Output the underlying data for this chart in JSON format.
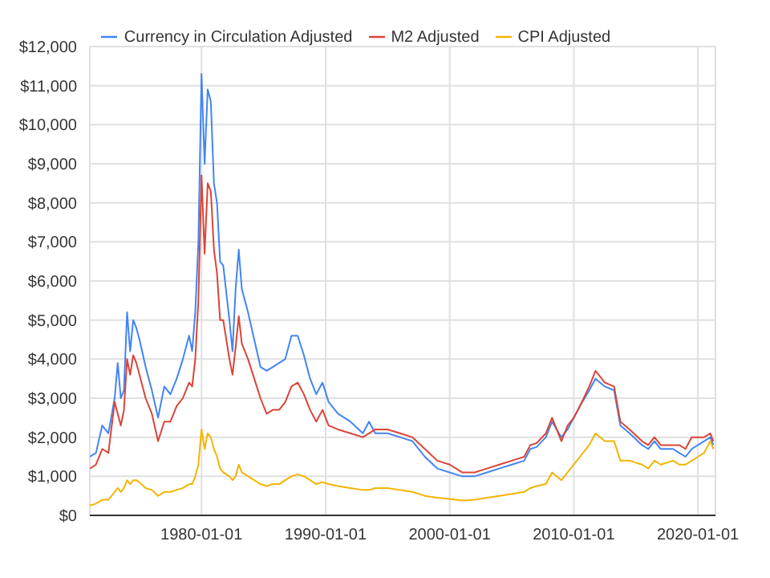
{
  "chart_data": {
    "type": "line",
    "legend": "top",
    "grid": true,
    "marker": "none",
    "x": [
      "1971-01",
      "1971-07",
      "1972-01",
      "1972-07",
      "1973-01",
      "1973-04",
      "1973-07",
      "1973-10",
      "1974-01",
      "1974-04",
      "1974-07",
      "1974-10",
      "1975-01",
      "1975-07",
      "1976-01",
      "1976-07",
      "1977-01",
      "1977-07",
      "1978-01",
      "1978-07",
      "1979-01",
      "1979-04",
      "1979-07",
      "1979-10",
      "1980-01",
      "1980-04",
      "1980-07",
      "1980-10",
      "1981-01",
      "1981-04",
      "1981-07",
      "1981-10",
      "1982-04",
      "1982-07",
      "1982-10",
      "1983-01",
      "1983-04",
      "1983-10",
      "1984-04",
      "1984-10",
      "1985-04",
      "1985-10",
      "1986-04",
      "1986-10",
      "1987-04",
      "1987-10",
      "1988-04",
      "1988-10",
      "1989-04",
      "1989-10",
      "1990-04",
      "1991-01",
      "1992-01",
      "1993-01",
      "1993-07",
      "1994-01",
      "1995-01",
      "1996-01",
      "1997-01",
      "1998-01",
      "1999-01",
      "2000-01",
      "2001-01",
      "2002-01",
      "2003-01",
      "2004-01",
      "2005-01",
      "2006-01",
      "2006-07",
      "2007-01",
      "2007-10",
      "2008-04",
      "2009-01",
      "2009-07",
      "2010-01",
      "2010-07",
      "2011-04",
      "2011-10",
      "2012-07",
      "2013-04",
      "2013-10",
      "2014-07",
      "2015-07",
      "2016-01",
      "2016-07",
      "2017-01",
      "2018-01",
      "2018-07",
      "2019-01",
      "2019-07",
      "2020-01",
      "2020-07",
      "2021-01",
      "2021-04"
    ],
    "xlim": [
      "1971-01",
      "2021-06"
    ],
    "xticks": [
      "1980-01-01",
      "1990-01-01",
      "2000-01-01",
      "2010-01-01",
      "2020-01-01"
    ],
    "ylim": [
      0,
      12000
    ],
    "yticks": [
      {
        "value": 0,
        "label": "$0"
      },
      {
        "value": 1000,
        "label": "$1,000"
      },
      {
        "value": 2000,
        "label": "$2,000"
      },
      {
        "value": 3000,
        "label": "$3,000"
      },
      {
        "value": 4000,
        "label": "$4,000"
      },
      {
        "value": 5000,
        "label": "$5,000"
      },
      {
        "value": 6000,
        "label": "$6,000"
      },
      {
        "value": 7000,
        "label": "$7,000"
      },
      {
        "value": 8000,
        "label": "$8,000"
      },
      {
        "value": 9000,
        "label": "$9,000"
      },
      {
        "value": 10000,
        "label": "$10,000"
      },
      {
        "value": 11000,
        "label": "$11,000"
      },
      {
        "value": 12000,
        "label": "$12,000"
      }
    ],
    "series": [
      {
        "name": "Currency in Circulation Adjusted",
        "color": "#4285f4",
        "values": [
          1500,
          1600,
          2300,
          2100,
          3000,
          3900,
          3000,
          3200,
          5200,
          4200,
          5000,
          4800,
          4500,
          3800,
          3200,
          2500,
          3300,
          3100,
          3500,
          4000,
          4600,
          4200,
          5200,
          7000,
          11300,
          9000,
          10900,
          10600,
          8500,
          8000,
          6500,
          6400,
          5000,
          4200,
          5800,
          6800,
          5800,
          5200,
          4500,
          3800,
          3700,
          3800,
          3900,
          4000,
          4600,
          4600,
          4100,
          3500,
          3100,
          3400,
          2900,
          2600,
          2400,
          2100,
          2400,
          2100,
          2100,
          2000,
          1900,
          1500,
          1200,
          1100,
          1000,
          1000,
          1100,
          1200,
          1300,
          1400,
          1700,
          1750,
          2000,
          2400,
          2000,
          2200,
          2500,
          2800,
          3200,
          3500,
          3300,
          3200,
          2300,
          2100,
          1800,
          1700,
          1900,
          1700,
          1700,
          1600,
          1500,
          1700,
          1800,
          1900,
          2000,
          1800
        ]
      },
      {
        "name": "M2 Adjusted",
        "color": "#db4437",
        "values": [
          1200,
          1300,
          1700,
          1600,
          2900,
          2600,
          2300,
          2700,
          4000,
          3600,
          4100,
          3900,
          3600,
          3000,
          2600,
          1900,
          2400,
          2400,
          2800,
          3000,
          3400,
          3300,
          4000,
          5500,
          8700,
          6700,
          8500,
          8300,
          6800,
          6200,
          5000,
          5000,
          4000,
          3600,
          4300,
          5100,
          4400,
          4000,
          3500,
          3000,
          2600,
          2700,
          2700,
          2900,
          3300,
          3400,
          3100,
          2700,
          2400,
          2700,
          2300,
          2200,
          2100,
          2000,
          2100,
          2200,
          2200,
          2100,
          2000,
          1700,
          1400,
          1300,
          1100,
          1100,
          1200,
          1300,
          1400,
          1500,
          1800,
          1850,
          2100,
          2500,
          1900,
          2300,
          2500,
          2800,
          3300,
          3700,
          3400,
          3300,
          2400,
          2200,
          1900,
          1800,
          2000,
          1800,
          1800,
          1800,
          1700,
          2000,
          2000,
          2000,
          2100,
          1900
        ]
      },
      {
        "name": "CPI Adjusted",
        "color": "#f4b400",
        "values": [
          250,
          300,
          400,
          400,
          600,
          700,
          600,
          700,
          900,
          800,
          900,
          900,
          850,
          700,
          650,
          500,
          600,
          600,
          650,
          700,
          800,
          800,
          1000,
          1300,
          2200,
          1700,
          2100,
          2000,
          1700,
          1500,
          1200,
          1100,
          1000,
          900,
          1000,
          1300,
          1100,
          1000,
          900,
          800,
          750,
          800,
          800,
          900,
          1000,
          1050,
          1000,
          900,
          800,
          850,
          800,
          750,
          700,
          650,
          650,
          700,
          700,
          650,
          600,
          500,
          450,
          420,
          380,
          400,
          450,
          500,
          550,
          600,
          700,
          750,
          800,
          1100,
          900,
          1100,
          1300,
          1500,
          1800,
          2100,
          1900,
          1900,
          1400,
          1400,
          1300,
          1200,
          1400,
          1300,
          1400,
          1300,
          1300,
          1400,
          1500,
          1600,
          1900,
          1700
        ]
      }
    ]
  }
}
